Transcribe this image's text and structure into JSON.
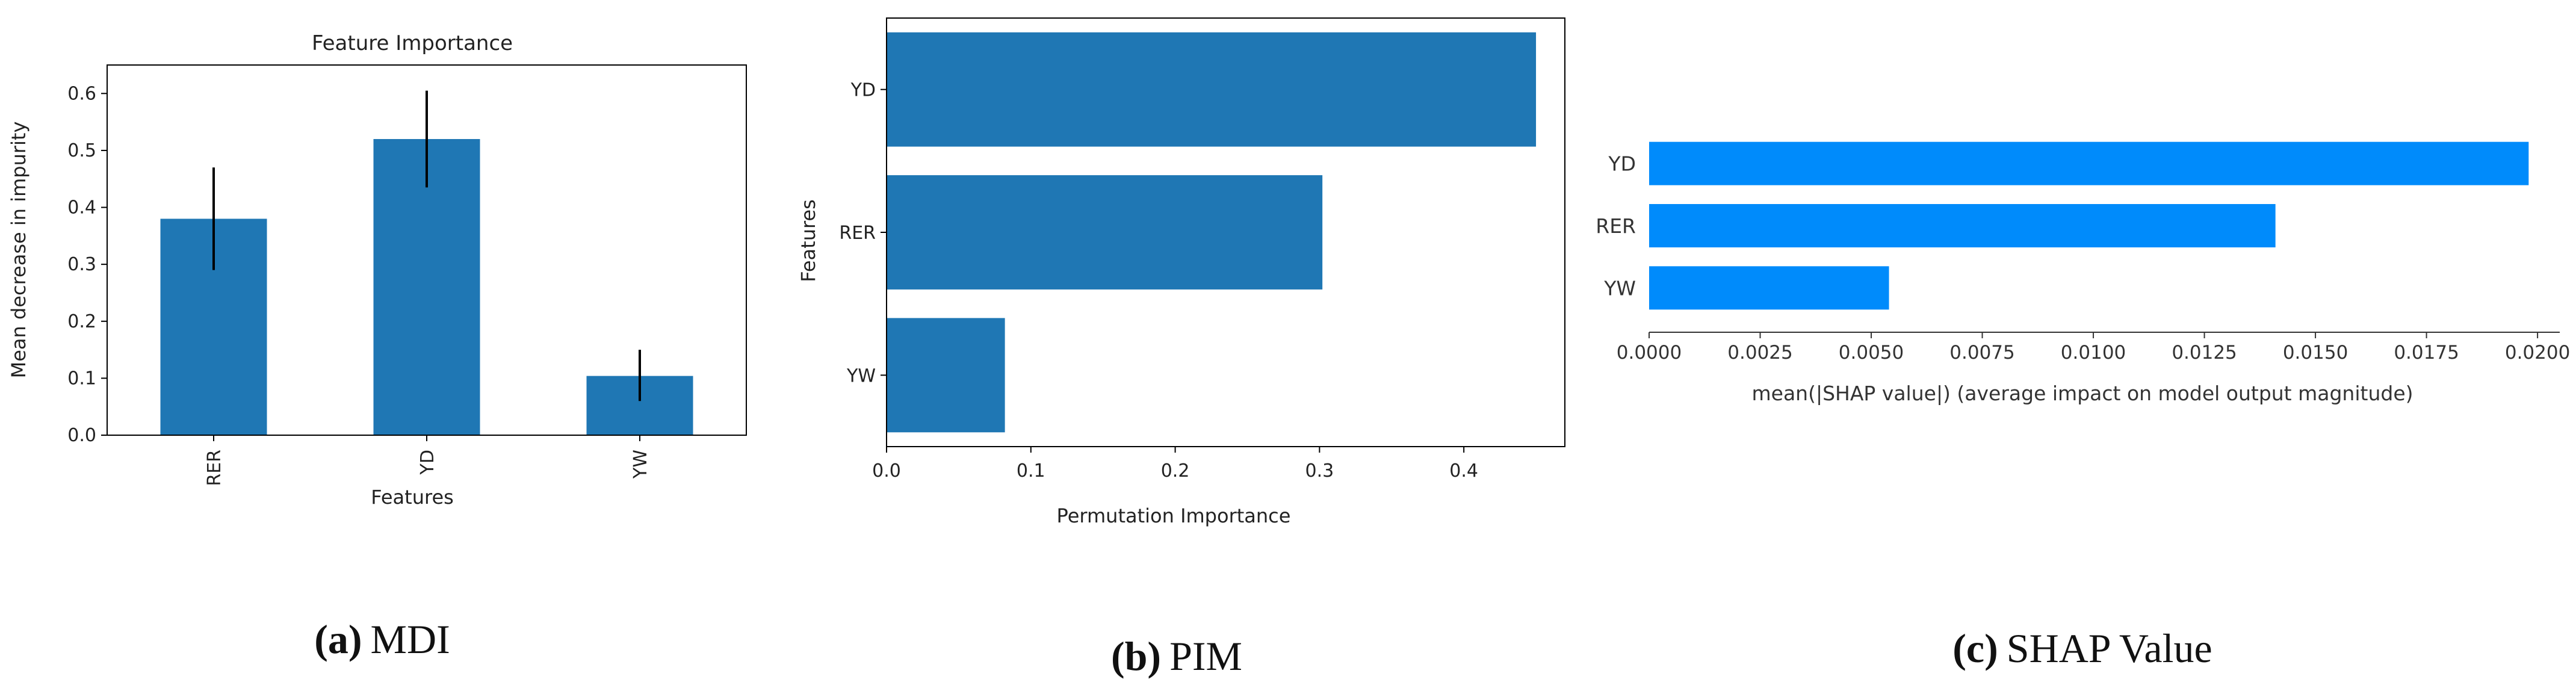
{
  "chart_data": [
    {
      "type": "bar",
      "orientation": "vertical",
      "title": "Feature Importance",
      "xlabel": "Features",
      "ylabel": "Mean decrease in impurity",
      "categories": [
        "RER",
        "YD",
        "YW"
      ],
      "values": [
        0.38,
        0.52,
        0.104
      ],
      "error_low": [
        0.29,
        0.435,
        0.06
      ],
      "error_high": [
        0.47,
        0.605,
        0.15
      ],
      "ylim": [
        0,
        0.65
      ],
      "yticks": [
        0.0,
        0.1,
        0.2,
        0.3,
        0.4,
        0.5,
        0.6
      ],
      "ytick_labels": [
        "0.0",
        "0.1",
        "0.2",
        "0.3",
        "0.4",
        "0.5",
        "0.6"
      ],
      "color": "#1f77b4",
      "caption_letter": "(a)",
      "caption_text": "MDI"
    },
    {
      "type": "bar",
      "orientation": "horizontal",
      "title": "",
      "xlabel": "Permutation Importance",
      "ylabel": "Features",
      "categories": [
        "YD",
        "RER",
        "YW"
      ],
      "values": [
        0.45,
        0.302,
        0.082
      ],
      "xlim": [
        0,
        0.47
      ],
      "xticks": [
        0.0,
        0.1,
        0.2,
        0.3,
        0.4
      ],
      "xtick_labels": [
        "0.0",
        "0.1",
        "0.2",
        "0.3",
        "0.4"
      ],
      "color": "#1f77b4",
      "caption_letter": "(b)",
      "caption_text": "PIM"
    },
    {
      "type": "bar",
      "orientation": "horizontal",
      "title": "",
      "xlabel": "mean(|SHAP value|) (average impact on model output magnitude)",
      "ylabel": "",
      "categories": [
        "YD",
        "RER",
        "YW"
      ],
      "values": [
        0.0198,
        0.0141,
        0.0054
      ],
      "xlim": [
        0,
        0.0205
      ],
      "xticks": [
        0.0,
        0.0025,
        0.005,
        0.0075,
        0.01,
        0.0125,
        0.015,
        0.0175,
        0.02
      ],
      "xtick_labels": [
        "0.0000",
        "0.0025",
        "0.0050",
        "0.0075",
        "0.0100",
        "0.0125",
        "0.0150",
        "0.0175",
        "0.0200"
      ],
      "color": "#008bfb",
      "caption_letter": "(c)",
      "caption_text": "SHAP Value"
    }
  ]
}
